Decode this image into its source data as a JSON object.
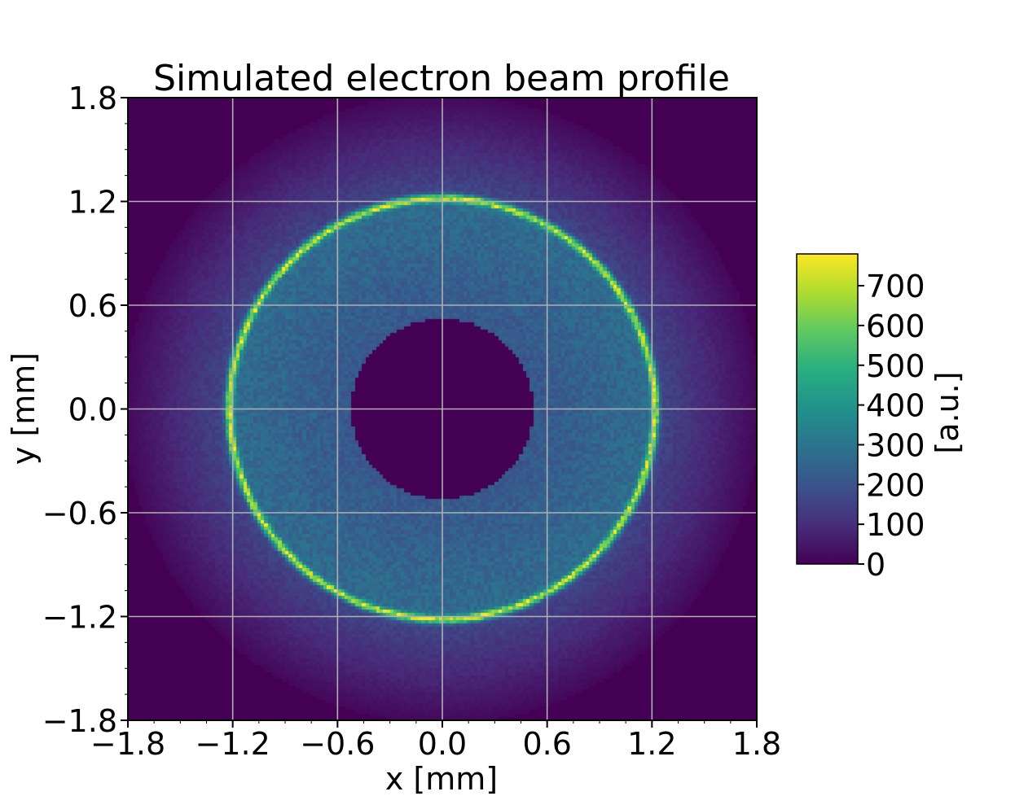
{
  "chart_data": {
    "type": "heatmap",
    "title": "Simulated electron beam profile",
    "xlabel": "x [mm]",
    "ylabel": "y [mm]",
    "xlim": [
      -1.8,
      1.8
    ],
    "ylim": [
      -1.8,
      1.8
    ],
    "xticks": [
      "−1.8",
      "−1.2",
      "−0.6",
      "0.0",
      "0.6",
      "1.2",
      "1.8"
    ],
    "yticks": [
      "−1.8",
      "−1.2",
      "−0.6",
      "0.0",
      "0.6",
      "1.2",
      "1.8"
    ],
    "xtick_values": [
      -1.8,
      -1.2,
      -0.6,
      0.0,
      0.6,
      1.2,
      1.8
    ],
    "ytick_values": [
      -1.8,
      -1.2,
      -0.6,
      0.0,
      0.6,
      1.2,
      1.8
    ],
    "grid": true,
    "colormap": "viridis",
    "colorbar": {
      "label": "[a.u.]",
      "range": [
        0,
        780
      ],
      "ticks": [
        "0",
        "100",
        "200",
        "300",
        "400",
        "500",
        "600",
        "700"
      ],
      "tick_values": [
        0,
        100,
        200,
        300,
        400,
        500,
        600,
        700
      ]
    },
    "features": {
      "inner_hole_radius": 0.52,
      "ring_radius": 1.22,
      "ring_peak": 740,
      "plateau_level": 260,
      "outer_edge_radius": 1.82,
      "outer_halo_level": 130
    }
  }
}
